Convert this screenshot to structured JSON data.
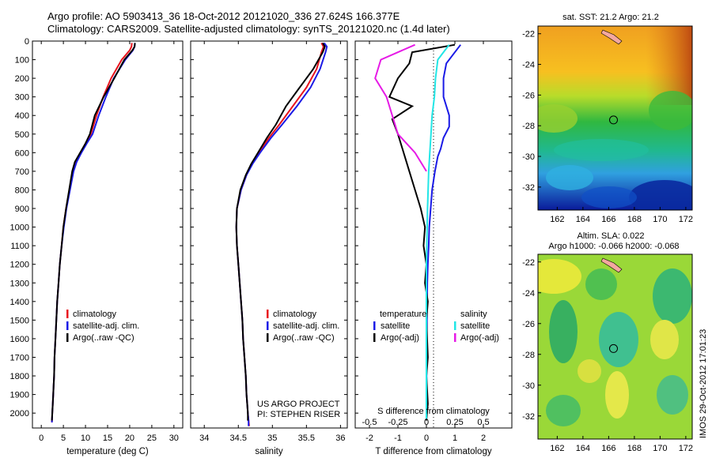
{
  "header": {
    "line1": "Argo profile: AO 5903413_36 18-Oct-2012 20121020_336 27.624S 166.377E",
    "line2": "Climatology: CARS2009. Satellite-adjusted climatology: synTS_20121020.nc (1.4d later)"
  },
  "colors": {
    "climatology": "#e8141e",
    "satellite": "#1a1ae6",
    "argo": "#000000",
    "satellite_salinity": "#22e6e6",
    "argo_salinity": "#e61ae6"
  },
  "depth_axis": {
    "ylim": [
      2080,
      0
    ],
    "ticks": [
      0,
      100,
      200,
      300,
      400,
      500,
      600,
      700,
      800,
      900,
      1000,
      1100,
      1200,
      1300,
      1400,
      1500,
      1600,
      1700,
      1800,
      1900,
      2000
    ]
  },
  "panel_temperature": {
    "xlabel": "temperature (deg C)",
    "xlim": [
      -2,
      32
    ],
    "xticks": [
      0,
      5,
      10,
      15,
      20,
      25,
      30
    ],
    "legend": [
      "climatology",
      "satellite-adj. clim.",
      "Argo(..raw -QC)"
    ]
  },
  "panel_salinity": {
    "xlabel": "salinity",
    "xlim": [
      33.8,
      36.1
    ],
    "xticks": [
      "34",
      "34.5",
      "35",
      "35.5",
      "36"
    ],
    "xtick_values": [
      34,
      34.5,
      35,
      35.5,
      36
    ],
    "legend": [
      "climatology",
      "satellite-adj. clim.",
      "Argo(..raw -QC)"
    ],
    "credit1": "US ARGO PROJECT",
    "credit2": "PI: STEPHEN RISER"
  },
  "panel_difference": {
    "xlabel_bottom": "T difference from climatology",
    "xlabel_top": "S difference from climatology",
    "xlim": [
      -2.5,
      3
    ],
    "xticks_bottom": [
      "-2",
      "-1",
      "0",
      "1",
      "2"
    ],
    "xticks_bottom_values": [
      -2,
      -1,
      0,
      1,
      2
    ],
    "xticks_top": [
      "-0.5",
      "-0.25",
      "0",
      "0.25",
      "0.5"
    ],
    "xticks_top_values": [
      -0.5,
      -0.25,
      0,
      0.25,
      0.5
    ],
    "legend_temperature_title": "temperature",
    "legend_salinity_title": "salinity",
    "legend_temperature": [
      "satellite",
      "Argo(-adj)"
    ],
    "legend_salinity": [
      "satellite",
      "Argo(-adj)"
    ]
  },
  "map_sst": {
    "title": "sat. SST: 21.2  Argo: 21.2",
    "xticks": [
      "162",
      "164",
      "166",
      "168",
      "170",
      "172"
    ],
    "xtick_values": [
      162,
      164,
      166,
      168,
      170,
      172
    ],
    "yticks": [
      "-22",
      "-24",
      "-26",
      "-28",
      "-30",
      "-32"
    ],
    "ytick_values": [
      -22,
      -24,
      -26,
      -28,
      -30,
      -32
    ],
    "lon_range": [
      160.5,
      172.5
    ],
    "lat_range": [
      -33.5,
      -21.5
    ],
    "float_position": [
      166.377,
      -27.624
    ]
  },
  "map_sla": {
    "title1": "Altim. SLA: 0.022",
    "title2": "Argo h1000: -0.066  h2000: -0.068",
    "xticks": [
      "162",
      "164",
      "166",
      "168",
      "170",
      "172"
    ],
    "xtick_values": [
      162,
      164,
      166,
      168,
      170,
      172
    ],
    "yticks": [
      "-22",
      "-24",
      "-26",
      "-28",
      "-30",
      "-32"
    ],
    "ytick_values": [
      -22,
      -24,
      -26,
      -28,
      -30,
      -32
    ],
    "lon_range": [
      160.5,
      172.5
    ],
    "lat_range": [
      -33.5,
      -21.5
    ],
    "float_position": [
      166.377,
      -27.624
    ]
  },
  "timestamp": "IMOS 29-Oct-2012 17:01:23",
  "chart_data": [
    {
      "type": "line",
      "title": "",
      "xlabel": "temperature (deg C)",
      "ylabel": "",
      "xlim": [
        -2,
        32
      ],
      "ylim": [
        2080,
        0
      ],
      "series": [
        {
          "name": "climatology",
          "x": [
            20.5,
            20.4,
            20.0,
            18.2,
            15.8,
            14.0,
            12.5,
            11.2,
            10.0,
            8.9,
            7.8,
            7.2,
            6.4,
            5.6,
            5.0,
            4.6,
            4.2,
            3.9,
            3.6,
            3.4,
            3.2,
            3.0,
            2.9,
            2.8,
            2.7,
            2.6,
            2.5,
            2.4
          ],
          "y": [
            10,
            30,
            50,
            100,
            200,
            300,
            400,
            500,
            550,
            600,
            650,
            700,
            800,
            900,
            1000,
            1100,
            1200,
            1300,
            1400,
            1500,
            1600,
            1700,
            1800,
            1850,
            1900,
            1950,
            2000,
            2050
          ]
        },
        {
          "name": "satellite-adj. clim.",
          "x": [
            21.2,
            21.1,
            20.7,
            19.0,
            16.4,
            14.6,
            13.0,
            11.6,
            10.3,
            9.1,
            8.0,
            7.3,
            6.5,
            5.7,
            5.1,
            4.6,
            4.2,
            3.9,
            3.6,
            3.4,
            3.2,
            3.0,
            2.9,
            2.8,
            2.7,
            2.6,
            2.5,
            2.4
          ],
          "y": [
            10,
            30,
            50,
            100,
            200,
            300,
            400,
            500,
            550,
            600,
            650,
            700,
            800,
            900,
            1000,
            1100,
            1200,
            1300,
            1400,
            1500,
            1600,
            1700,
            1800,
            1850,
            1900,
            1950,
            2000,
            2050
          ]
        },
        {
          "name": "Argo(..raw -QC)",
          "x": [
            21.2,
            21.1,
            20.6,
            18.8,
            16.5,
            14.1,
            12.1,
            11.0,
            10.0,
            8.8,
            7.6,
            7.0,
            6.3,
            5.6,
            5.0,
            4.6,
            4.2,
            3.9,
            3.6,
            3.4,
            3.2,
            3.0,
            2.9,
            2.8,
            2.7,
            2.6,
            2.5,
            2.4
          ],
          "y": [
            10,
            30,
            50,
            100,
            200,
            300,
            400,
            500,
            550,
            600,
            650,
            700,
            800,
            900,
            1000,
            1100,
            1200,
            1300,
            1400,
            1500,
            1600,
            1700,
            1800,
            1850,
            1900,
            1950,
            2000,
            2040
          ]
        }
      ]
    },
    {
      "type": "line",
      "title": "",
      "xlabel": "salinity",
      "ylabel": "",
      "xlim": [
        33.8,
        36.1
      ],
      "ylim": [
        2080,
        0
      ],
      "series": [
        {
          "name": "climatology",
          "x": [
            35.72,
            35.75,
            35.72,
            35.65,
            35.5,
            35.3,
            35.1,
            34.95,
            34.8,
            34.7,
            34.62,
            34.54,
            34.48,
            34.47,
            34.48,
            34.5,
            34.52,
            34.54,
            34.56,
            34.57,
            34.59,
            34.61,
            34.62,
            34.63,
            34.64,
            34.65,
            34.66
          ],
          "y": [
            10,
            30,
            60,
            150,
            250,
            350,
            450,
            520,
            600,
            660,
            720,
            800,
            900,
            1000,
            1100,
            1200,
            1300,
            1400,
            1500,
            1600,
            1700,
            1800,
            1900,
            1950,
            2000,
            2040,
            2070
          ]
        },
        {
          "name": "satellite-adj. clim.",
          "x": [
            35.76,
            35.8,
            35.78,
            35.7,
            35.56,
            35.36,
            35.14,
            34.98,
            34.82,
            34.71,
            34.62,
            34.54,
            34.48,
            34.47,
            34.48,
            34.5,
            34.52,
            34.54,
            34.56,
            34.57,
            34.59,
            34.61,
            34.62,
            34.63,
            34.64,
            34.65,
            34.65
          ],
          "y": [
            10,
            30,
            60,
            150,
            250,
            350,
            450,
            520,
            600,
            660,
            720,
            800,
            900,
            1000,
            1100,
            1200,
            1300,
            1400,
            1500,
            1600,
            1700,
            1800,
            1900,
            1950,
            2000,
            2040,
            2070
          ]
        },
        {
          "name": "Argo(..raw -QC)",
          "x": [
            35.74,
            35.77,
            35.74,
            35.6,
            35.4,
            35.2,
            35.05,
            34.92,
            34.79,
            34.69,
            34.61,
            34.53,
            34.48,
            34.47,
            34.48,
            34.5,
            34.52,
            34.54,
            34.56,
            34.57,
            34.59,
            34.61,
            34.62,
            34.63,
            34.64,
            34.64
          ],
          "y": [
            10,
            30,
            60,
            150,
            250,
            350,
            450,
            520,
            600,
            660,
            720,
            800,
            900,
            1000,
            1100,
            1200,
            1300,
            1400,
            1500,
            1600,
            1700,
            1800,
            1900,
            1950,
            2000,
            2040
          ]
        }
      ]
    },
    {
      "type": "line",
      "title": "",
      "xlabel": "T difference from climatology",
      "ylabel": "",
      "xlim": [
        -2.5,
        3
      ],
      "ylim": [
        2080,
        0
      ],
      "series": [
        {
          "name": "temperature satellite",
          "x": [
            1.2,
            0.9,
            0.7,
            0.6,
            0.6,
            0.8,
            0.8,
            0.6,
            0.5,
            0.4,
            0.3,
            0.2,
            0.15,
            0.1,
            0.08,
            0.05,
            0.03,
            0.02,
            0.01,
            0,
            0
          ],
          "y": [
            20,
            80,
            120,
            200,
            300,
            400,
            460,
            520,
            580,
            620,
            700,
            800,
            900,
            1000,
            1100,
            1200,
            1300,
            1500,
            1700,
            1900,
            2030
          ]
        },
        {
          "name": "temperature Argo(-adj)",
          "x": [
            1.0,
            -0.5,
            -0.6,
            -1.0,
            -1.3,
            -0.5,
            -1.2,
            -1.0,
            -0.8,
            -0.6,
            -0.4,
            -0.2,
            -0.05,
            -0.1,
            0.0,
            -0.05,
            0.05,
            0.0,
            0.05,
            0.0,
            0.05,
            0.0
          ],
          "y": [
            20,
            60,
            120,
            200,
            300,
            350,
            420,
            500,
            600,
            700,
            800,
            900,
            1000,
            1100,
            1200,
            1300,
            1400,
            1500,
            1700,
            1800,
            1950,
            2040
          ]
        },
        {
          "name": "salinity satellite",
          "x": [
            0.2,
            0.15,
            0.1,
            0.08,
            0.07,
            0.05,
            0.04,
            0.03,
            0.02,
            0.01,
            0.0,
            0.0
          ],
          "y": [
            20,
            60,
            100,
            200,
            300,
            400,
            500,
            600,
            700,
            900,
            1200,
            2030
          ]
        },
        {
          "name": "salinity Argo(-adj)",
          "x": [
            -0.1,
            -0.4,
            -0.45,
            -0.35,
            -0.3,
            -0.25,
            -0.1,
            -0.05,
            0.0
          ],
          "y": [
            20,
            100,
            200,
            300,
            400,
            500,
            600,
            650,
            700
          ]
        }
      ]
    }
  ]
}
